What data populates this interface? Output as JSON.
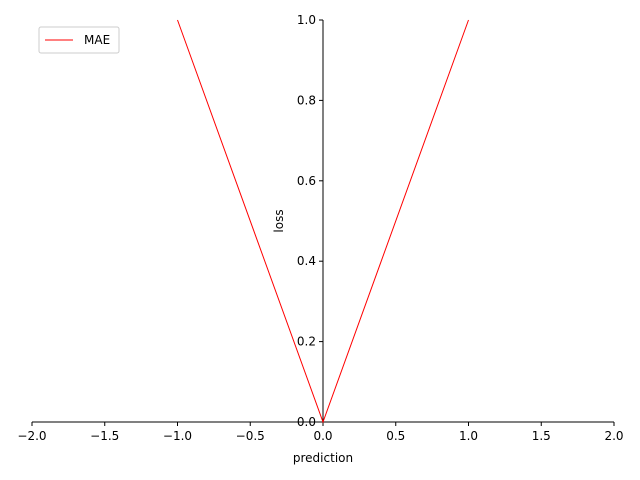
{
  "chart_data": {
    "type": "line",
    "xlabel": "prediction",
    "ylabel": "loss",
    "xlim": [
      -2.0,
      2.0
    ],
    "ylim": [
      0.0,
      1.0
    ],
    "x_ticks": [
      "−2.0",
      "−1.5",
      "−1.0",
      "−0.5",
      "0.0",
      "0.5",
      "1.0",
      "1.5",
      "2.0"
    ],
    "y_ticks": [
      "0.0",
      "0.2",
      "0.4",
      "0.6",
      "0.8",
      "1.0"
    ],
    "series": [
      {
        "name": "MAE",
        "color": "#ff0000",
        "x": [
          -1.0,
          0.0,
          1.0
        ],
        "y": [
          1.0,
          0.0,
          1.0
        ]
      }
    ],
    "legend_position": "top-left",
    "grid": false
  }
}
